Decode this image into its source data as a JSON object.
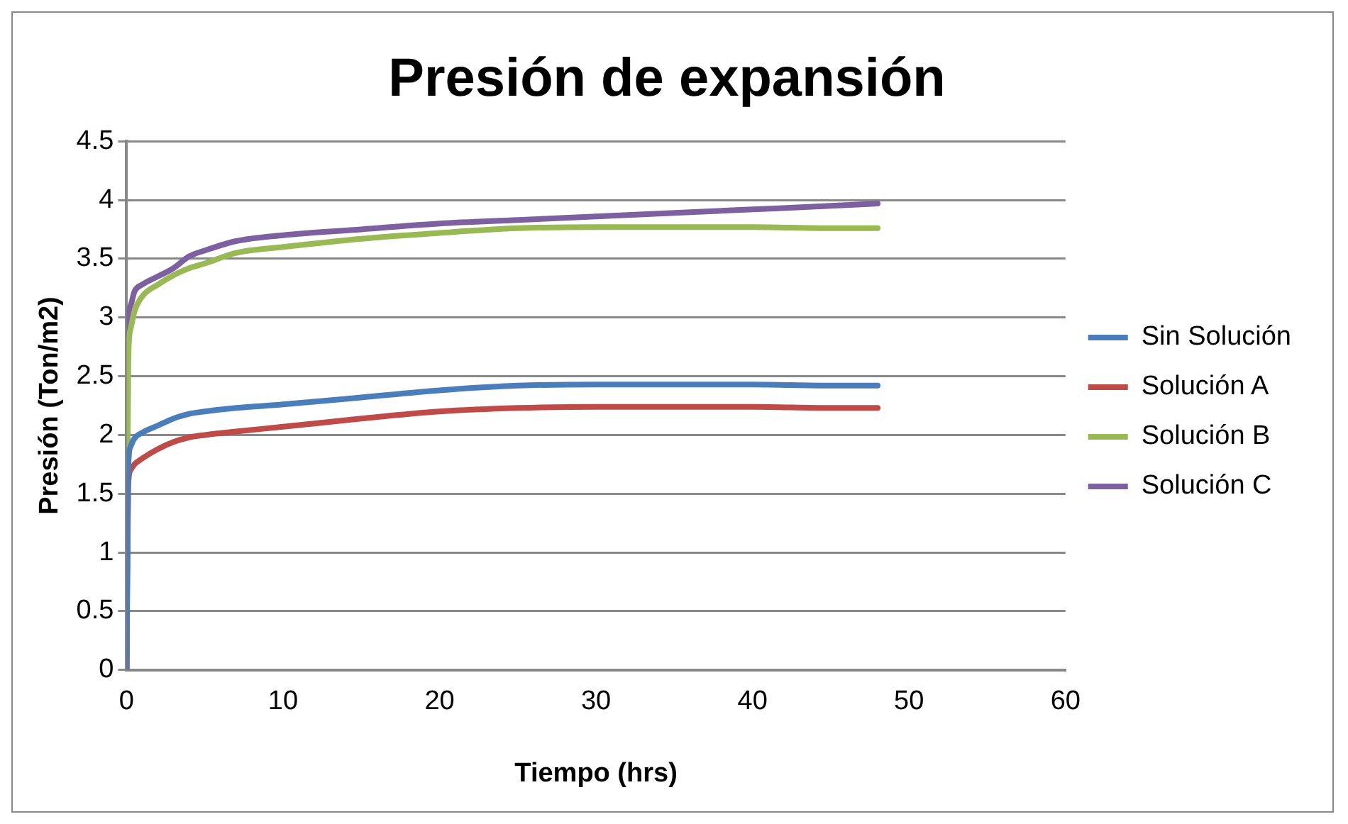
{
  "chart_data": {
    "type": "line",
    "title": "Presión de expansión",
    "xlabel": "Tiempo (hrs)",
    "ylabel": "Presión (Ton/m2)",
    "x": [
      0,
      0.1,
      0.25,
      0.5,
      1,
      2,
      3,
      4,
      5,
      7,
      10,
      15,
      20,
      25,
      30,
      35,
      40,
      45,
      48
    ],
    "series": [
      {
        "name": "Sin Solución",
        "color": "#4a7ebb",
        "values": [
          0,
          1.7,
          1.9,
          1.97,
          2.02,
          2.08,
          2.14,
          2.18,
          2.2,
          2.23,
          2.26,
          2.32,
          2.38,
          2.42,
          2.43,
          2.43,
          2.43,
          2.42,
          2.42
        ]
      },
      {
        "name": "Solución A",
        "color": "#be4b48",
        "values": [
          0,
          1.55,
          1.7,
          1.75,
          1.8,
          1.88,
          1.94,
          1.98,
          2.0,
          2.03,
          2.07,
          2.14,
          2.2,
          2.23,
          2.24,
          2.24,
          2.24,
          2.23,
          2.23
        ]
      },
      {
        "name": "Solución B",
        "color": "#98b954",
        "values": [
          0,
          2.6,
          2.9,
          3.05,
          3.18,
          3.28,
          3.36,
          3.42,
          3.46,
          3.55,
          3.6,
          3.67,
          3.72,
          3.76,
          3.77,
          3.77,
          3.77,
          3.76,
          3.76
        ]
      },
      {
        "name": "Solución C",
        "color": "#7d60a0",
        "values": [
          0,
          2.9,
          3.1,
          3.22,
          3.28,
          3.35,
          3.42,
          3.52,
          3.57,
          3.65,
          3.7,
          3.75,
          3.8,
          3.83,
          3.86,
          3.89,
          3.92,
          3.95,
          3.97
        ]
      }
    ],
    "xlim": [
      0,
      60
    ],
    "xticks": [
      0,
      10,
      20,
      30,
      40,
      50,
      60
    ],
    "ylim": [
      0,
      4.5
    ],
    "yticks": [
      0,
      0.5,
      1,
      1.5,
      2,
      2.5,
      3,
      3.5,
      4,
      4.5
    ],
    "grid": "y",
    "legend": "right",
    "marker": "none",
    "line_style": "solid"
  }
}
